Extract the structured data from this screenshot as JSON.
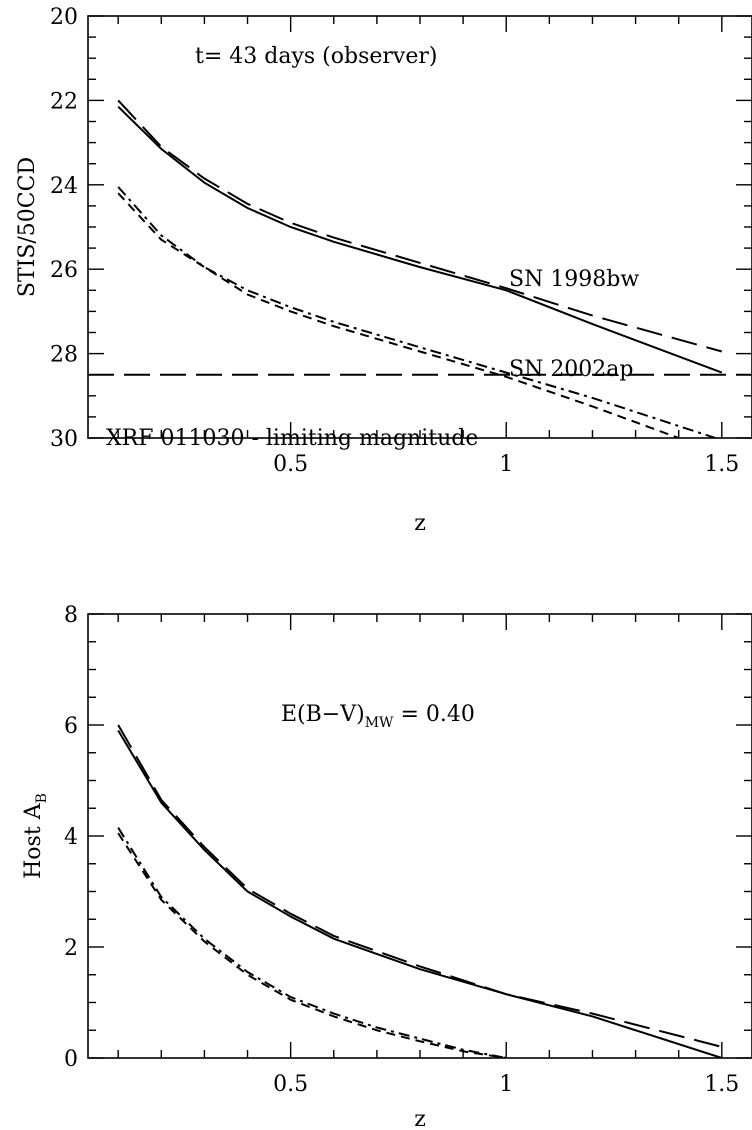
{
  "chart_data": [
    {
      "type": "line",
      "ylabel": "STIS/50CCD",
      "xlabel": "z",
      "xlim": [
        0.03,
        1.57
      ],
      "ylim": [
        30,
        20
      ],
      "y_inverted": true,
      "xticks": [
        0.5,
        1,
        1.5
      ],
      "xtick_labels": [
        "0.5",
        "1",
        "1.5"
      ],
      "yticks": [
        20,
        22,
        24,
        26,
        28,
        30
      ],
      "ytick_labels": [
        "20",
        "22",
        "24",
        "26",
        "28",
        "30"
      ],
      "x_minor_step": 0.1,
      "y_minor_step": 0.5,
      "annotations": {
        "epoch": "t= 43 days (observer)",
        "sn1998bw": "SN 1998bw",
        "sn2002ap": "SN 2002ap",
        "limit": "XRF 011030 - limiting magnitude"
      },
      "hline": {
        "y": 28.5,
        "dash": "long-dash"
      },
      "series": [
        {
          "dash": "solid",
          "x": [
            0.1,
            0.2,
            0.3,
            0.4,
            0.5,
            0.6,
            0.8,
            1.0,
            1.2,
            1.5
          ],
          "y": [
            22.15,
            23.15,
            23.95,
            24.55,
            25.0,
            25.35,
            25.95,
            26.5,
            27.3,
            28.45
          ]
        },
        {
          "dash": "long-dash",
          "x": [
            0.1,
            0.2,
            0.3,
            0.4,
            0.5,
            0.6,
            0.8,
            1.0,
            1.2,
            1.5
          ],
          "y": [
            22.0,
            23.1,
            23.85,
            24.45,
            24.9,
            25.25,
            25.85,
            26.45,
            27.1,
            27.95
          ]
        },
        {
          "dash": "short-dash",
          "x": [
            0.1,
            0.2,
            0.3,
            0.4,
            0.5,
            0.6,
            0.8,
            1.0,
            1.2,
            1.4
          ],
          "y": [
            24.2,
            25.3,
            25.95,
            26.6,
            27.0,
            27.35,
            27.95,
            28.55,
            29.25,
            30.0
          ]
        },
        {
          "dash": "dash-dot",
          "x": [
            0.1,
            0.2,
            0.3,
            0.4,
            0.5,
            0.6,
            0.8,
            1.0,
            1.2,
            1.5
          ],
          "y": [
            24.05,
            25.2,
            25.95,
            26.5,
            26.9,
            27.25,
            27.85,
            28.45,
            29.05,
            30.05
          ]
        }
      ]
    },
    {
      "type": "line",
      "ylabel": "Host A",
      "ylabel_sub": "B",
      "xlabel": "z",
      "xlim": [
        0.03,
        1.57
      ],
      "ylim": [
        0,
        8
      ],
      "xticks": [
        0.5,
        1,
        1.5
      ],
      "xtick_labels": [
        "0.5",
        "1",
        "1.5"
      ],
      "yticks": [
        0,
        2,
        4,
        6,
        8
      ],
      "ytick_labels": [
        "0",
        "2",
        "4",
        "6",
        "8"
      ],
      "x_minor_step": 0.1,
      "y_minor_step": 0.5,
      "annotations": {
        "ebv_prefix": "E(B−V)",
        "ebv_sub": "MW",
        "ebv_value": " = 0.40"
      },
      "series": [
        {
          "dash": "solid",
          "x": [
            0.1,
            0.2,
            0.3,
            0.4,
            0.5,
            0.6,
            0.8,
            1.0,
            1.2,
            1.5
          ],
          "y": [
            5.9,
            4.6,
            3.75,
            3.0,
            2.55,
            2.15,
            1.6,
            1.15,
            0.75,
            0.0
          ]
        },
        {
          "dash": "long-dash",
          "x": [
            0.1,
            0.2,
            0.3,
            0.4,
            0.5,
            0.6,
            0.8,
            1.0,
            1.2,
            1.5
          ],
          "y": [
            6.0,
            4.65,
            3.8,
            3.05,
            2.6,
            2.2,
            1.65,
            1.15,
            0.8,
            0.2
          ]
        },
        {
          "dash": "short-dash",
          "x": [
            0.1,
            0.2,
            0.3,
            0.4,
            0.5,
            0.6,
            0.7,
            0.8,
            0.9,
            1.0
          ],
          "y": [
            4.05,
            2.85,
            2.1,
            1.5,
            1.05,
            0.75,
            0.5,
            0.3,
            0.12,
            0.0
          ]
        },
        {
          "dash": "dash-dot",
          "x": [
            0.1,
            0.2,
            0.3,
            0.4,
            0.5,
            0.6,
            0.7,
            0.8,
            0.9,
            1.0
          ],
          "y": [
            4.15,
            2.9,
            2.15,
            1.55,
            1.1,
            0.8,
            0.55,
            0.35,
            0.15,
            0.0
          ]
        }
      ]
    }
  ]
}
